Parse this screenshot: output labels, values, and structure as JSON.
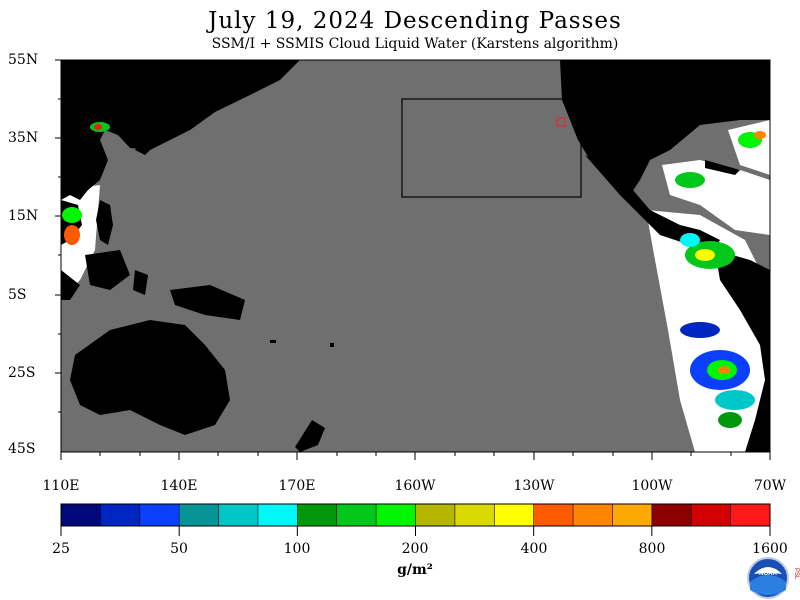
{
  "title": "July 19, 2024  Descending Passes",
  "subtitle": "SSM/I + SSMIS Cloud Liquid Water (Karstens algorithm)",
  "lat_labels": [
    "55N",
    "35N",
    "15N",
    "5S",
    "25S",
    "45S"
  ],
  "lon_labels": [
    "110E",
    "140E",
    "170E",
    "160W",
    "130W",
    "100W",
    "70W"
  ],
  "colorbar": {
    "labels": [
      "25",
      "50",
      "100",
      "200",
      "400",
      "800",
      "1600"
    ],
    "units": "g/m²",
    "colors": [
      "#00087a",
      "#0026c2",
      "#0a3fff",
      "#079497",
      "#00c7c7",
      "#00f8f8",
      "#00980a",
      "#00c71a",
      "#00f600",
      "#b6b600",
      "#dada00",
      "#ffff00",
      "#ff5a00",
      "#ff8400",
      "#ffa800",
      "#8c0000",
      "#d20000",
      "#ff1818"
    ]
  },
  "colors": {
    "ocean": "#6f6f6f",
    "land": "#000000",
    "swath_clear": "#ffffff"
  },
  "logo": {
    "text": "NOAA",
    "side_text": "PSL"
  }
}
